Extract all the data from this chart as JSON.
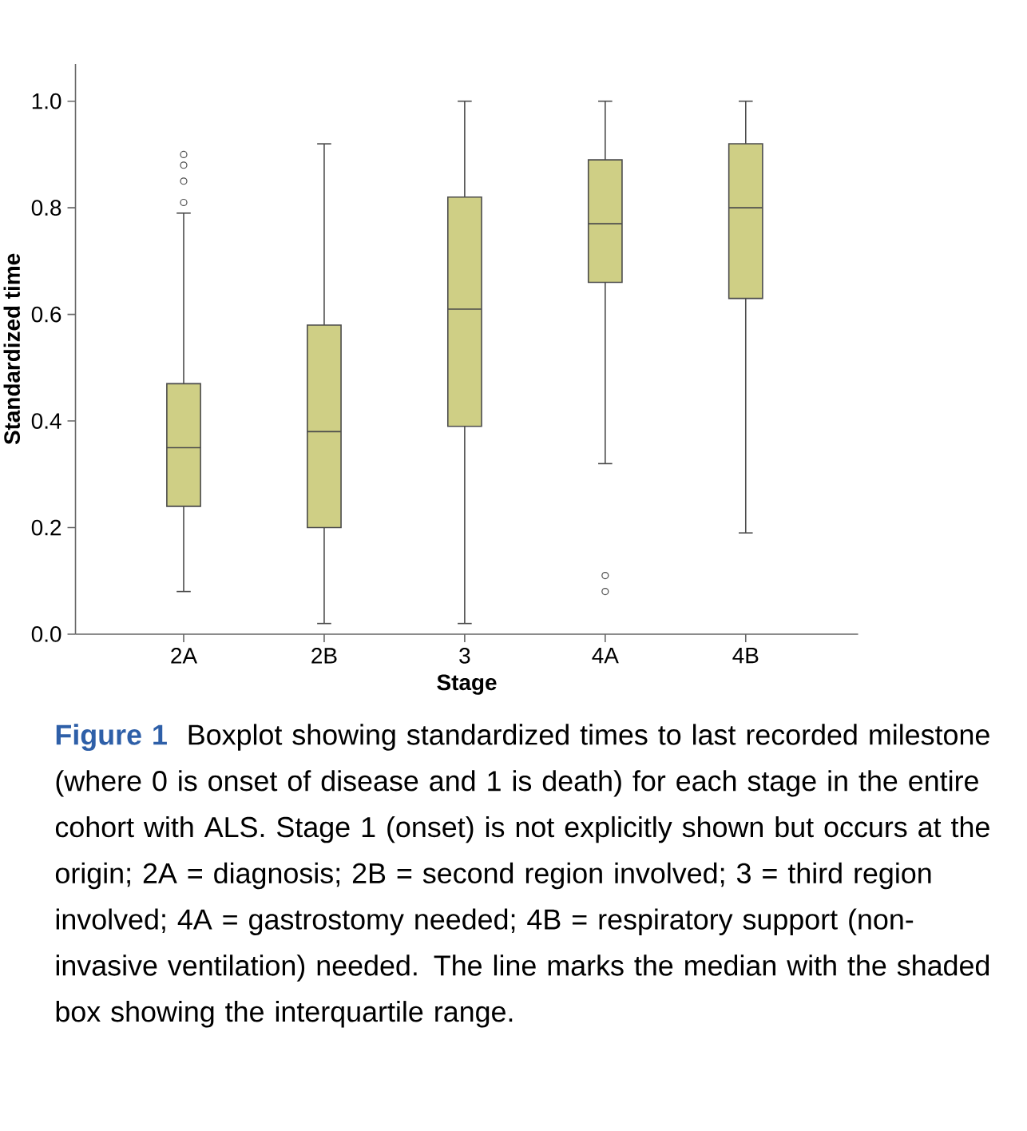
{
  "chart_data": {
    "type": "box",
    "xlabel": "Stage",
    "ylabel": "Standardized time",
    "categories": [
      "2A",
      "2B",
      "3",
      "4A",
      "4B"
    ],
    "color": "#cfcf85",
    "boxes": [
      {
        "low": 0.08,
        "q1": 0.24,
        "median": 0.35,
        "q3": 0.47,
        "high": 0.79,
        "outliers": [
          0.81,
          0.85,
          0.88,
          0.9
        ]
      },
      {
        "low": 0.02,
        "q1": 0.2,
        "median": 0.38,
        "q3": 0.58,
        "high": 0.92
      },
      {
        "low": 0.02,
        "q1": 0.39,
        "median": 0.61,
        "q3": 0.82,
        "high": 1.0
      },
      {
        "low": 0.32,
        "q1": 0.66,
        "median": 0.77,
        "q3": 0.89,
        "high": 1.0,
        "outliers": [
          0.08,
          0.11
        ]
      },
      {
        "low": 0.19,
        "q1": 0.63,
        "median": 0.8,
        "q3": 0.92,
        "high": 1.0
      }
    ],
    "ylim": [
      0,
      1.07
    ],
    "yticks": [
      {
        "value": 0,
        "label": "0.0"
      },
      {
        "value": 0.2,
        "label": "0.2"
      },
      {
        "value": 0.4,
        "label": "0.4"
      },
      {
        "value": 0.6,
        "label": "0.6"
      },
      {
        "value": 0.8,
        "label": "0.8"
      },
      {
        "value": 1,
        "label": "1.0"
      }
    ],
    "annotations": [
      "Figure 1",
      "Boxplot showing standardized times to last recorded milestone (where 0 is onset of disease and 1 is death) for each stage in the entire cohort with ALS. Stage 1 (onset) is not explicitly shown but occurs at the origin; 2A = diagnosis; 2B = second region involved; 3 = third region involved; 4A = gastrostomy needed; 4B = respiratory support (non-invasive ventilation) needed. The line marks the median with the shaded box showing the interquartile range."
    ]
  }
}
